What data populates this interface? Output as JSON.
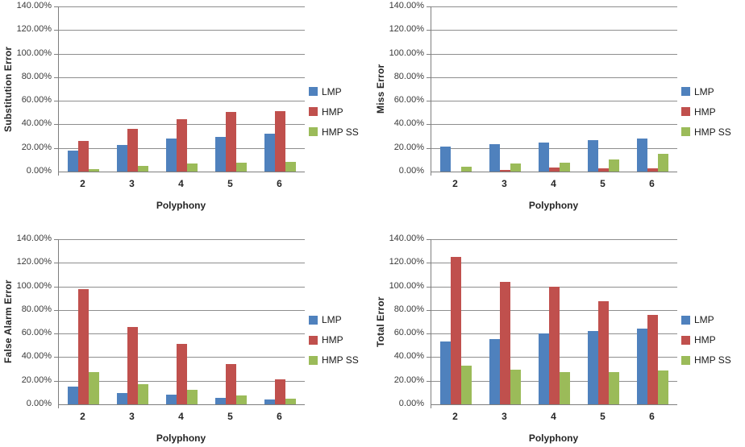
{
  "palette": {
    "lmp_blue": "#4F81BD",
    "hmp_red": "#C0504D",
    "hmp_ss_green": "#9BBB59",
    "gridline_gray": "#8E8E8E",
    "axis_gray": "#7F7F7F",
    "text_dark": "#262626"
  },
  "chart_data": [
    {
      "type": "bar",
      "position": "top-left",
      "ylabel": "Substitution Error",
      "xlabel": "Polyphony",
      "categories": [
        "2",
        "3",
        "4",
        "5",
        "6"
      ],
      "ylim": [
        0,
        140
      ],
      "ytick_labels": [
        "0.00%",
        "20.00%",
        "40.00%",
        "60.00%",
        "80.00%",
        "100.00%",
        "120.00%",
        "140.00%"
      ],
      "grid": true,
      "legend_position": "right",
      "series": [
        {
          "name": "LMP",
          "color": "#4F81BD",
          "values": [
            17.5,
            22.5,
            28,
            29.5,
            32
          ]
        },
        {
          "name": "HMP",
          "color": "#C0504D",
          "values": [
            26,
            36.5,
            44.5,
            50.5,
            51
          ]
        },
        {
          "name": "HMP SS",
          "color": "#9BBB59",
          "values": [
            2,
            4.5,
            6.5,
            7.5,
            8
          ]
        }
      ]
    },
    {
      "type": "bar",
      "position": "top-right",
      "ylabel": "Miss Error",
      "xlabel": "Polyphony",
      "categories": [
        "2",
        "3",
        "4",
        "5",
        "6"
      ],
      "ylim": [
        0,
        140
      ],
      "ytick_labels": [
        "0.00%",
        "20.00%",
        "40.00%",
        "60.00%",
        "80.00%",
        "100.00%",
        "120.00%",
        "140.00%"
      ],
      "grid": true,
      "legend_position": "right",
      "series": [
        {
          "name": "LMP",
          "color": "#4F81BD",
          "values": [
            21.5,
            23,
            24.5,
            26.5,
            28
          ]
        },
        {
          "name": "HMP",
          "color": "#C0504D",
          "values": [
            0,
            1.5,
            3.5,
            2.5,
            3
          ]
        },
        {
          "name": "HMP SS",
          "color": "#9BBB59",
          "values": [
            4,
            7,
            7.5,
            10.5,
            15
          ]
        }
      ]
    },
    {
      "type": "bar",
      "position": "bottom-left",
      "ylabel": "False Alarm Error",
      "xlabel": "Polyphony",
      "categories": [
        "2",
        "3",
        "4",
        "5",
        "6"
      ],
      "ylim": [
        0,
        140
      ],
      "ytick_labels": [
        "0.00%",
        "20.00%",
        "40.00%",
        "60.00%",
        "80.00%",
        "100.00%",
        "120.00%",
        "140.00%"
      ],
      "grid": true,
      "legend_position": "right",
      "series": [
        {
          "name": "LMP",
          "color": "#4F81BD",
          "values": [
            15,
            9.5,
            8,
            5.5,
            4
          ]
        },
        {
          "name": "HMP",
          "color": "#C0504D",
          "values": [
            98,
            65.5,
            51.5,
            34,
            21
          ]
        },
        {
          "name": "HMP SS",
          "color": "#9BBB59",
          "values": [
            27,
            17,
            12,
            7.5,
            5
          ]
        }
      ]
    },
    {
      "type": "bar",
      "position": "bottom-right",
      "ylabel": "Total Error",
      "xlabel": "Polyphony",
      "categories": [
        "2",
        "3",
        "4",
        "5",
        "6"
      ],
      "ylim": [
        0,
        140
      ],
      "ytick_labels": [
        "0.00%",
        "20.00%",
        "40.00%",
        "60.00%",
        "80.00%",
        "100.00%",
        "120.00%",
        "140.00%"
      ],
      "grid": true,
      "legend_position": "right",
      "series": [
        {
          "name": "LMP",
          "color": "#4F81BD",
          "values": [
            53.5,
            55.5,
            60,
            62,
            64
          ]
        },
        {
          "name": "HMP",
          "color": "#C0504D",
          "values": [
            125,
            104,
            100,
            87.5,
            75.5
          ]
        },
        {
          "name": "HMP SS",
          "color": "#9BBB59",
          "values": [
            33,
            29.5,
            27,
            27,
            28.5
          ]
        }
      ]
    }
  ]
}
